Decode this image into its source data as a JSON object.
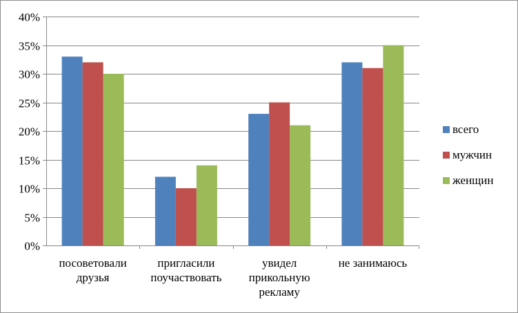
{
  "chart_data": {
    "type": "bar",
    "categories": [
      [
        "посоветовали",
        "друзья"
      ],
      [
        "пригласили",
        "поучаствовать"
      ],
      [
        "увидел",
        "прикольную",
        "рекламу"
      ],
      [
        "не занимаюсь"
      ]
    ],
    "series": [
      {
        "name": "всего",
        "color": "#4f81bd",
        "values": [
          33,
          12,
          23,
          32
        ]
      },
      {
        "name": "мужчин",
        "color": "#c0504d",
        "values": [
          32,
          10,
          25,
          31
        ]
      },
      {
        "name": "женщин",
        "color": "#9bbb59",
        "values": [
          30,
          14,
          21,
          35
        ]
      }
    ],
    "y_ticks": [
      "0%",
      "5%",
      "10%",
      "15%",
      "20%",
      "25%",
      "30%",
      "35%",
      "40%"
    ],
    "ylim": [
      0,
      40
    ],
    "grid": true,
    "legend_position": "right",
    "title": "",
    "xlabel": "",
    "ylabel": ""
  }
}
